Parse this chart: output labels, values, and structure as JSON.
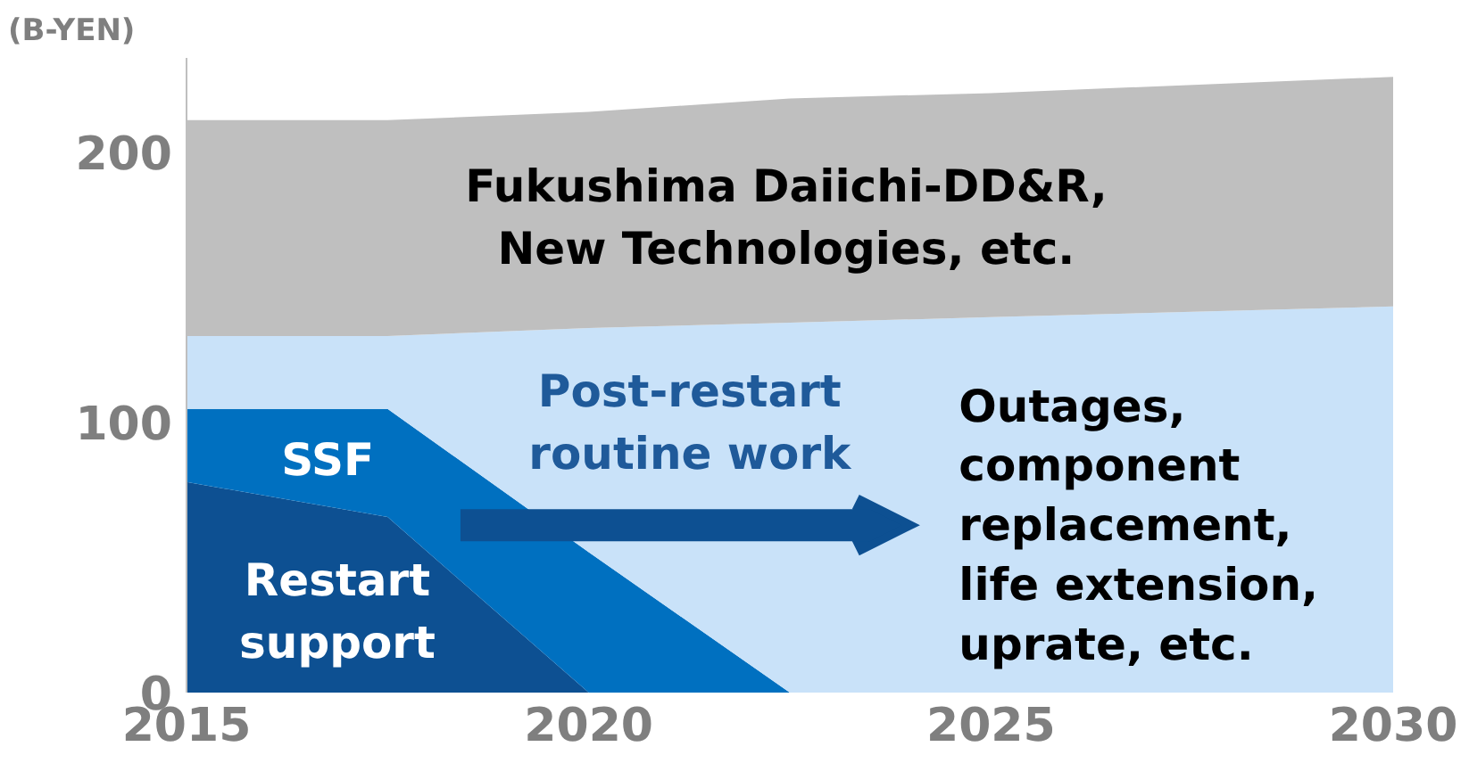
{
  "chart_data": {
    "type": "area",
    "stacked": true,
    "ylabel": "(B-YEN)",
    "x": [
      2015,
      2017.5,
      2020,
      2022.5,
      2025,
      2030
    ],
    "series": [
      {
        "name": "Restart\nsupport",
        "color": "#0d5092",
        "values": [
          78,
          65,
          0,
          0,
          0,
          0
        ]
      },
      {
        "name": "SSF",
        "color": "#0070c0",
        "values": [
          27,
          40,
          52,
          0,
          0,
          0
        ]
      },
      {
        "name": "Post-restart\nroutine work",
        "color": "#c9e2f9",
        "values": [
          27,
          27,
          83,
          137,
          139,
          143
        ]
      },
      {
        "name": "Fukushima Daiichi-DD&R,\nNew Technologies, etc.",
        "color": "#bfbfbf",
        "values": [
          80,
          80,
          80,
          83,
          83,
          85
        ]
      }
    ],
    "annotations": [
      "Outages,\ncomponent\nreplacement,\nlife extension,\nuprate, etc."
    ],
    "xlim": [
      2015,
      2030
    ],
    "xticks": [
      2015,
      2020,
      2025,
      2030
    ],
    "ylim": [
      0,
      235
    ],
    "yticks": [
      0,
      100,
      200
    ],
    "grid": false,
    "legend": false
  }
}
